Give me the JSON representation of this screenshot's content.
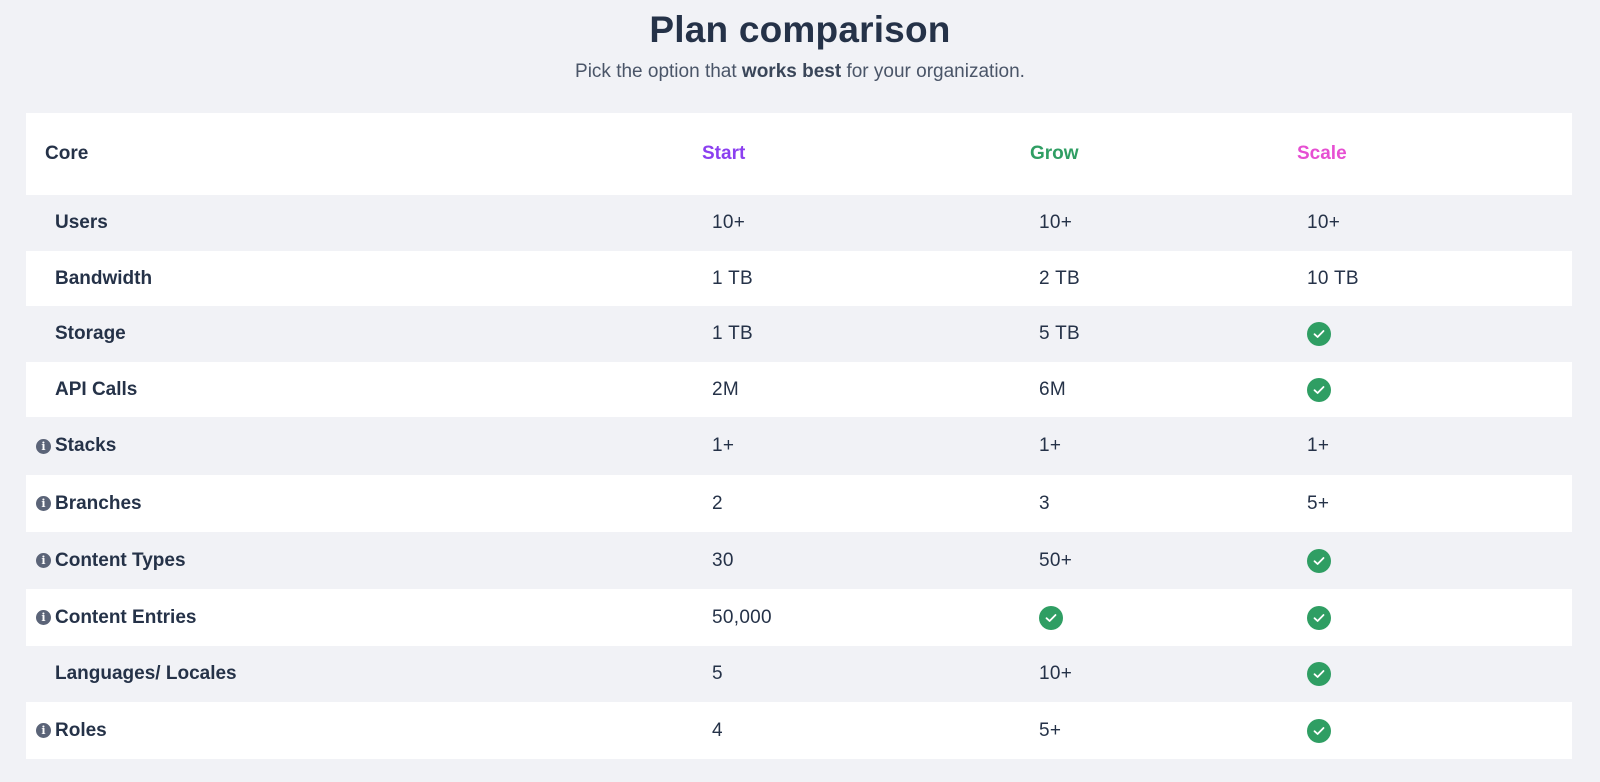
{
  "header": {
    "title": "Plan comparison",
    "subtitle_before": "Pick the option that ",
    "subtitle_bold": "works best",
    "subtitle_after": " for your organization."
  },
  "table": {
    "section_label": "Core",
    "plans": [
      {
        "name": "Start",
        "color": "#8b3ff0"
      },
      {
        "name": "Grow",
        "color": "#2f9e63"
      },
      {
        "name": "Scale",
        "color": "#e64fd2"
      }
    ],
    "rows": [
      {
        "feature": "Users",
        "info": false,
        "start": "10+",
        "grow": "10+",
        "scale": "10+"
      },
      {
        "feature": "Bandwidth",
        "info": false,
        "start": "1 TB",
        "grow": "2 TB",
        "scale": "10 TB"
      },
      {
        "feature": "Storage",
        "info": false,
        "start": "1 TB",
        "grow": "5 TB",
        "scale": "check-icon"
      },
      {
        "feature": "API Calls",
        "info": false,
        "start": "2M",
        "grow": "6M",
        "scale": "check-icon"
      },
      {
        "feature": "Stacks",
        "info": true,
        "start": "1+",
        "grow": "1+",
        "scale": "1+"
      },
      {
        "feature": "Branches",
        "info": true,
        "start": "2",
        "grow": "3",
        "scale": "5+"
      },
      {
        "feature": "Content Types",
        "info": true,
        "start": "30",
        "grow": "50+",
        "scale": "check-icon"
      },
      {
        "feature": "Content Entries",
        "info": true,
        "start": "50,000",
        "grow": "check-icon",
        "scale": "check-icon"
      },
      {
        "feature": "Languages/ Locales",
        "info": false,
        "start": "5",
        "grow": "10+",
        "scale": "check-icon"
      },
      {
        "feature": "Roles",
        "info": true,
        "start": "4",
        "grow": "5+",
        "scale": "check-icon"
      }
    ]
  },
  "icons": {
    "info": "info-icon",
    "info_glyph": "i",
    "included": "check-icon"
  }
}
